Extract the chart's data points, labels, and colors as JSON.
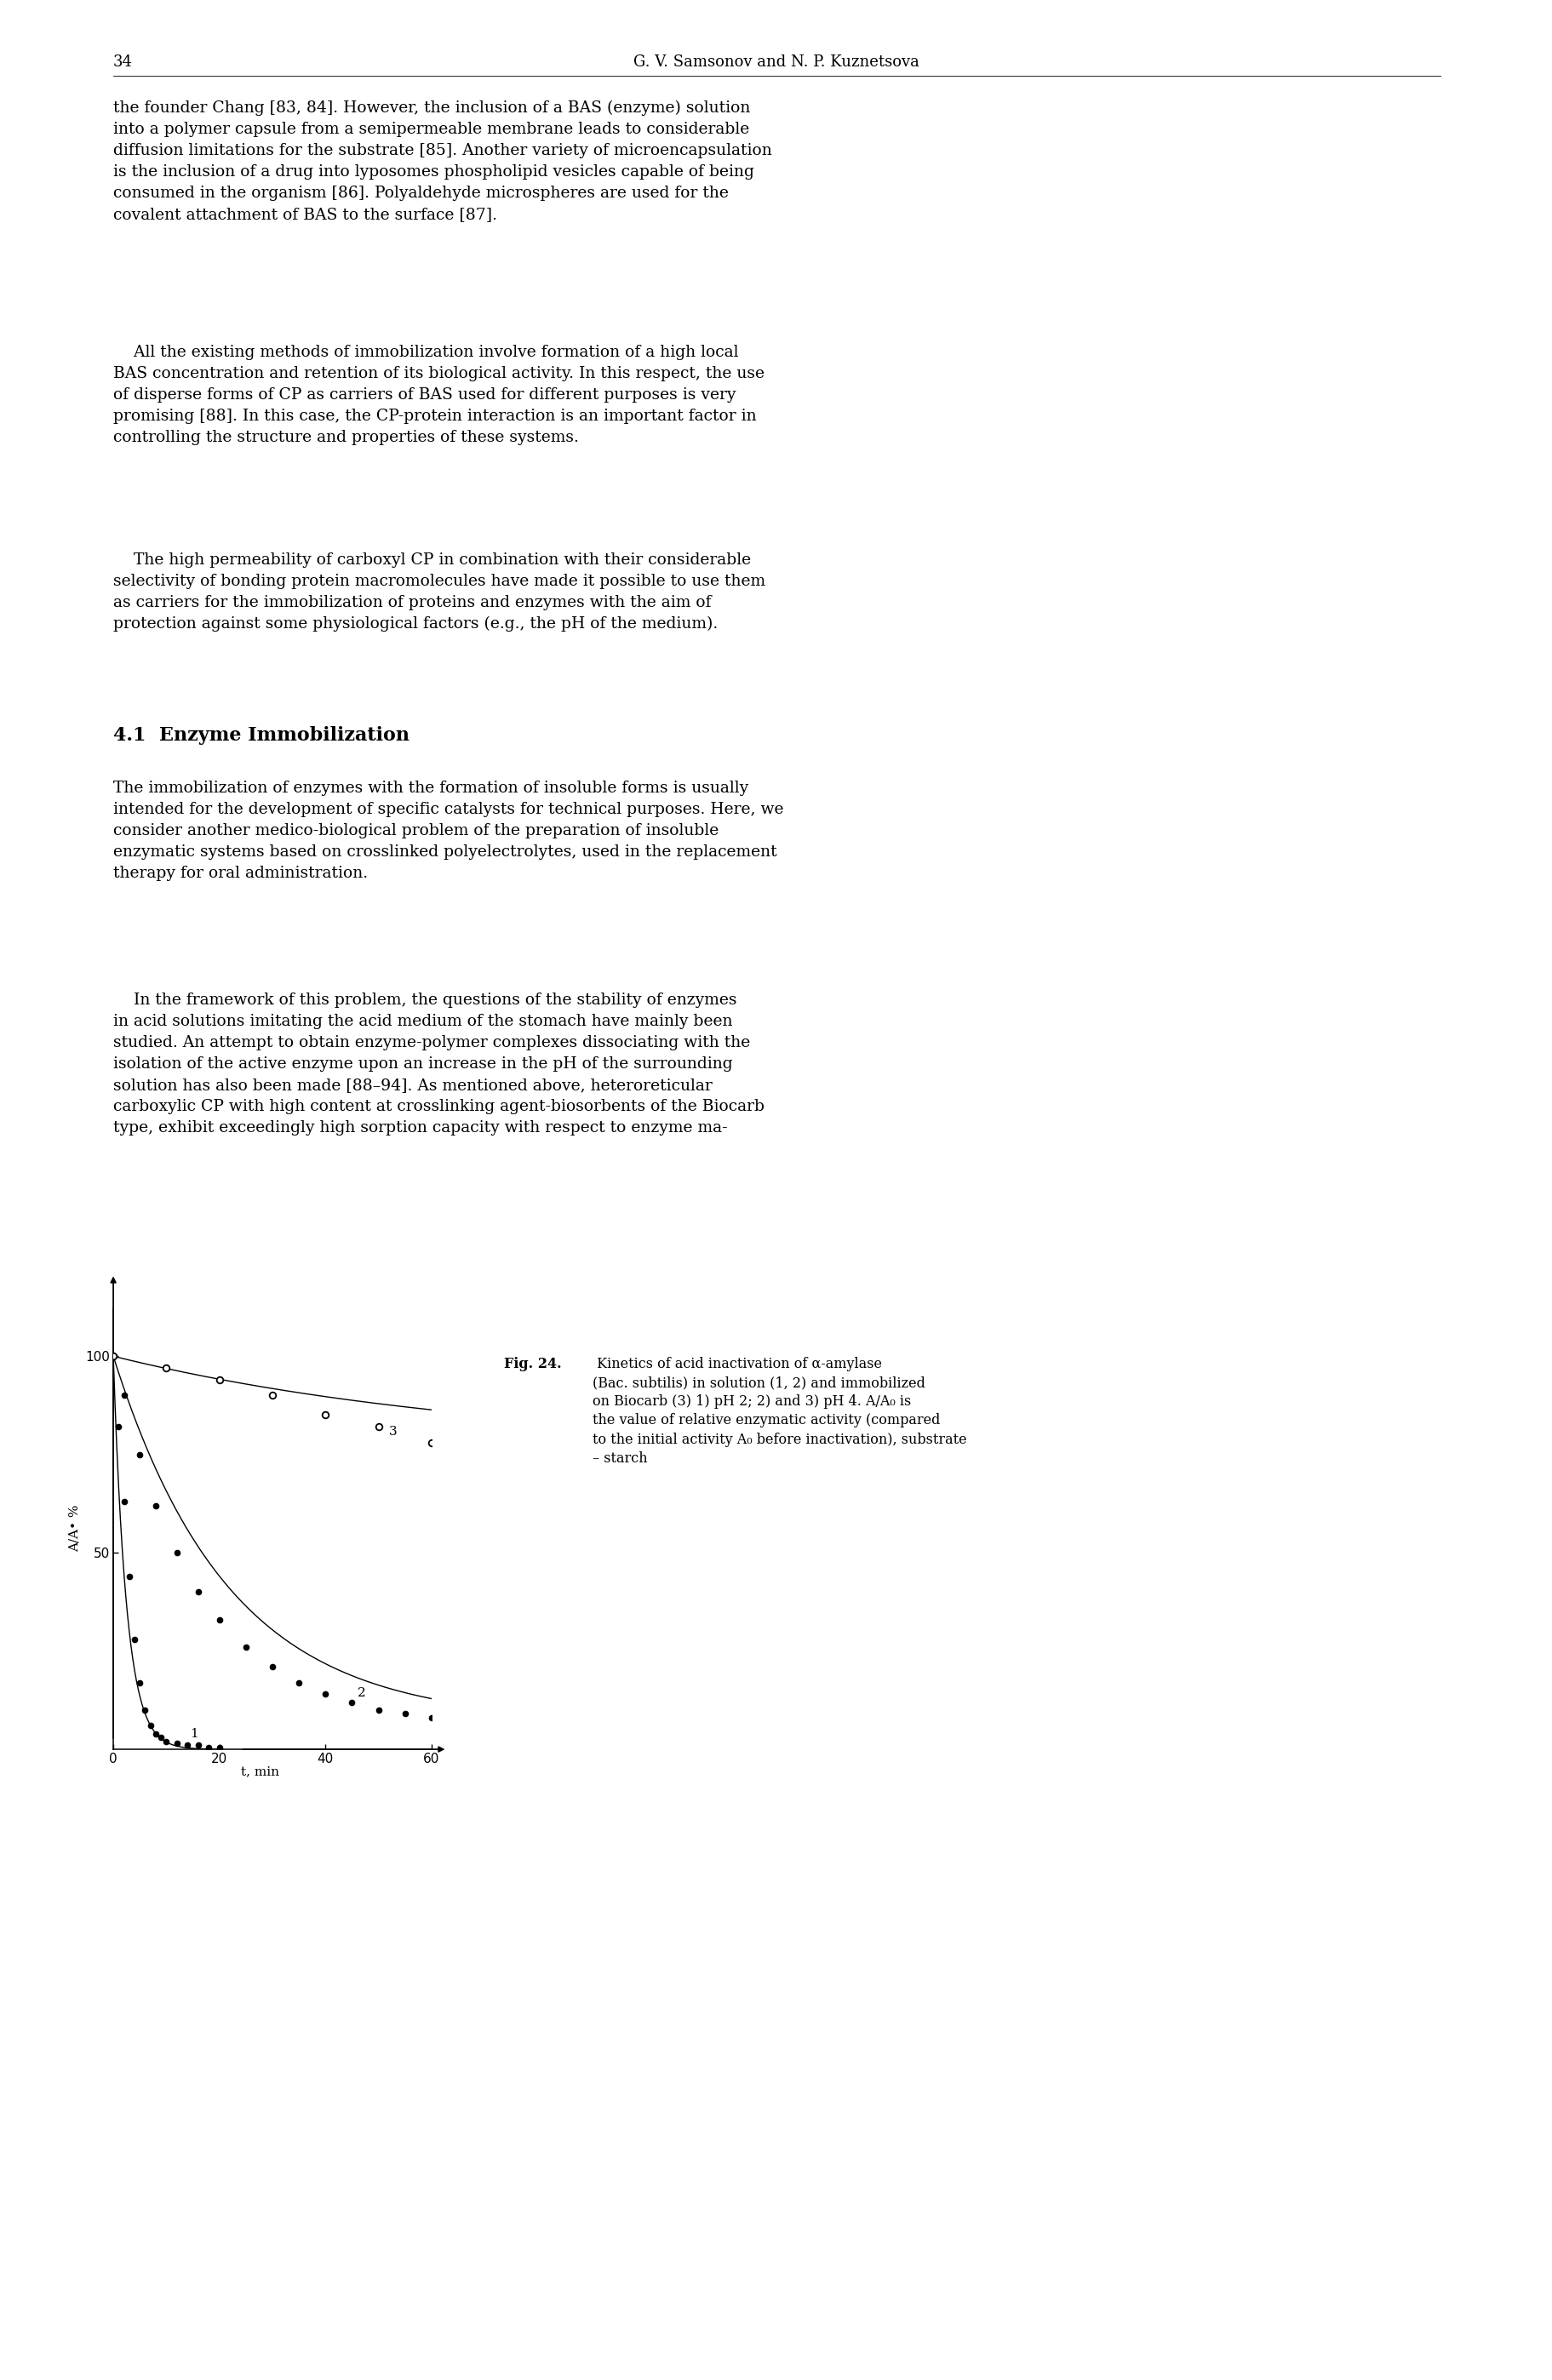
{
  "page_number": "34",
  "header_text": "G. V. Samsonov and N. P. Kuznetsova",
  "body_text_1": "the founder Chang [83, 84]. However, the inclusion of a BAS (enzyme) solution\ninto a polymer capsule from a semipermeable membrane leads to considerable\ndiffusion limitations for the substrate [85]. Another variety of microencapsulation\nis the inclusion of a drug into lyposomes phospholipid vesicles capable of being\nconsumed in the organism [86]. Polyaldehyde microspheres are used for the\ncovalent attachment of BAS to the surface [87].",
  "body_text_2": "    All the existing methods of immobilization involve formation of a high local\nBAS concentration and retention of its biological activity. In this respect, the use\nof disperse forms of CP as carriers of BAS used for different purposes is very\npromising [88]. In this case, the CP-protein interaction is an important factor in\ncontrolling the structure and properties of these systems.",
  "body_text_3": "    The high permeability of carboxyl CP in combination with their considerable\nselectivity of bonding protein macromolecules have made it possible to use them\nas carriers for the immobilization of proteins and enzymes with the aim of\nprotection against some physiological factors (e.g., the pH of the medium).",
  "section_title": "4.1  Enzyme Immobilization",
  "body_text_4": "The immobilization of enzymes with the formation of insoluble forms is usually\nintended for the development of specific catalysts for technical purposes. Here, we\nconsider another medico-biological problem of the preparation of insoluble\nenzymatic systems based on crosslinked polyelectrolytes, used in the replacement\ntherapy for oral administration.",
  "body_text_5": "    In the framework of this problem, the questions of the stability of enzymes\nin acid solutions imitating the acid medium of the stomach have mainly been\nstudied. An attempt to obtain enzyme-polymer complexes dissociating with the\nisolation of the active enzyme upon an increase in the pH of the surrounding\nsolution has also been made [88–94]. As mentioned above, heteroreticular\ncarboxylic CP with high content at crosslinking agent-biosorbents of the Biocarb\ntype, exhibit exceedingly high sorption capacity with respect to enzyme ma-",
  "curve1_t": [
    0,
    1,
    2,
    3,
    4,
    5,
    6,
    7,
    8,
    9,
    10,
    12,
    14,
    16,
    18,
    20
  ],
  "curve1_y": [
    100,
    82,
    63,
    44,
    28,
    17,
    10,
    6,
    4,
    3,
    2,
    1.5,
    1,
    1,
    0.5,
    0.5
  ],
  "curve2_t": [
    0,
    2,
    5,
    8,
    12,
    16,
    20,
    25,
    30,
    35,
    40,
    45,
    50,
    55,
    60
  ],
  "curve2_y": [
    100,
    90,
    75,
    62,
    50,
    40,
    33,
    26,
    21,
    17,
    14,
    12,
    10,
    9,
    8
  ],
  "curve3_t": [
    0,
    10,
    20,
    30,
    40,
    50,
    60
  ],
  "curve3_y": [
    100,
    97,
    94,
    90,
    85,
    82,
    78
  ],
  "xlim": [
    0,
    60
  ],
  "ylim": [
    0,
    112
  ],
  "yticks": [
    50,
    100
  ],
  "xticks": [
    0,
    20,
    40,
    60
  ],
  "label1": "1",
  "label2": "2",
  "label3": "3",
  "caption_bold": "Fig. 24.",
  "caption_rest": " Kinetics of acid inactivation of α-amylase\n(Bac. subtilis) in solution (1, 2) and immobilized\non Biocarb (3) 1) pH 2; 2) and 3) pH 4. A/A₀ is\nthe value of relative enzymatic activity (compared\nto the initial activity A₀ before inactivation), substrate\n– starch",
  "ylabel_text": "A/A• %",
  "xlabel_text": "t, min"
}
